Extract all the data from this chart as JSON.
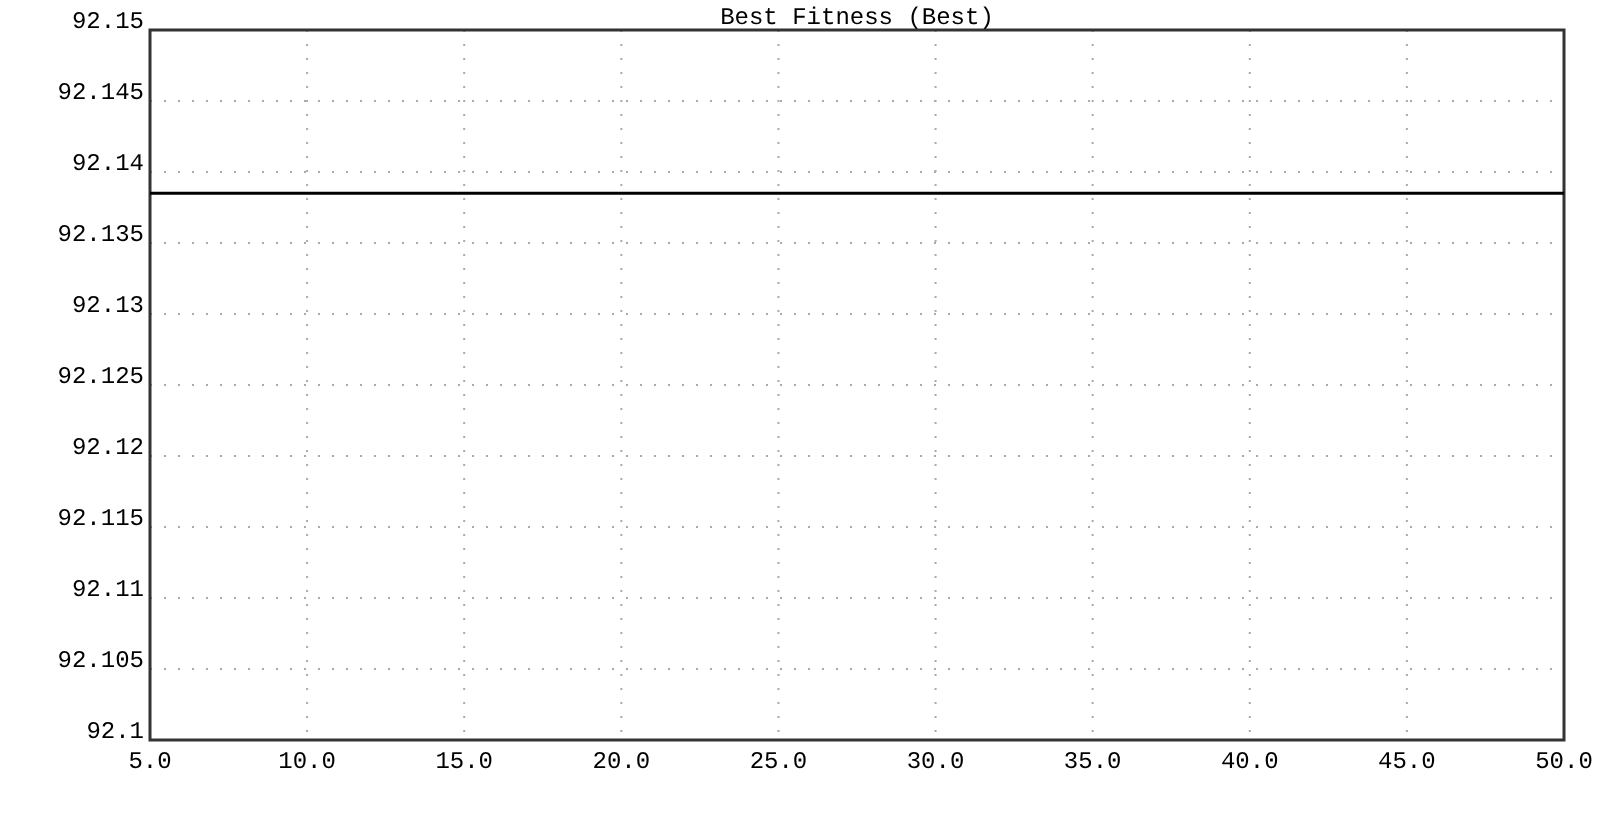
{
  "chart_data": {
    "type": "line",
    "title": "Best Fitness (Best)",
    "x": [
      5,
      50
    ],
    "series": [
      {
        "color": "#000000",
        "values": [
          92.1385,
          92.1385
        ]
      }
    ],
    "xlim": [
      5,
      50
    ],
    "xticks": [
      {
        "value": 5,
        "label": "5.0"
      },
      {
        "value": 10,
        "label": "10.0"
      },
      {
        "value": 15,
        "label": "15.0"
      },
      {
        "value": 20,
        "label": "20.0"
      },
      {
        "value": 25,
        "label": "25.0"
      },
      {
        "value": 30,
        "label": "30.0"
      },
      {
        "value": 35,
        "label": "35.0"
      },
      {
        "value": 40,
        "label": "40.0"
      },
      {
        "value": 45,
        "label": "45.0"
      },
      {
        "value": 50,
        "label": "50.0"
      }
    ],
    "ylim": [
      92.1,
      92.15
    ],
    "yticks": [
      92.1,
      92.105,
      92.11,
      92.115,
      92.12,
      92.125,
      92.13,
      92.135,
      92.14,
      92.145,
      92.15
    ],
    "grid": true,
    "marker": "none",
    "line_style": "solid"
  }
}
